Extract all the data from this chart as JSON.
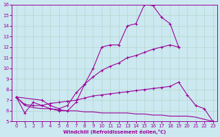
{
  "background_color": "#cce8f0",
  "grid_color": "#b0d8cc",
  "line_color": "#990099",
  "xlabel": "Windchill (Refroidissement éolien,°C)",
  "xlim": [
    -0.5,
    23.5
  ],
  "ylim": [
    5,
    16
  ],
  "xticks": [
    0,
    1,
    2,
    3,
    4,
    5,
    6,
    7,
    8,
    9,
    10,
    11,
    12,
    13,
    14,
    15,
    16,
    17,
    18,
    19,
    20,
    21,
    22,
    23
  ],
  "yticks": [
    5,
    6,
    7,
    8,
    9,
    10,
    11,
    12,
    13,
    14,
    15,
    16
  ],
  "line1_x": [
    0,
    1,
    2,
    3,
    4,
    5,
    6,
    7,
    8,
    9,
    10,
    11,
    12,
    13,
    14,
    15,
    16,
    17,
    18,
    19
  ],
  "line1_y": [
    7.3,
    5.8,
    6.8,
    6.5,
    6.2,
    6.0,
    6.0,
    6.8,
    8.5,
    10.0,
    12.0,
    12.2,
    12.2,
    14.0,
    14.2,
    16.0,
    15.9,
    14.8,
    14.2,
    12.0
  ],
  "line2_x": [
    0,
    3,
    4,
    5,
    6,
    7,
    8,
    9,
    10,
    11,
    12,
    13,
    14,
    15,
    16,
    17,
    18,
    19
  ],
  "line2_y": [
    7.3,
    7.0,
    6.5,
    6.2,
    6.5,
    7.7,
    8.5,
    9.2,
    9.8,
    10.2,
    10.5,
    11.0,
    11.2,
    11.5,
    11.8,
    12.0,
    12.2,
    12.0
  ],
  "line3_x": [
    0,
    1,
    2,
    3,
    4,
    5,
    6,
    7,
    8,
    9,
    10,
    11,
    12,
    13,
    14,
    15,
    16,
    17,
    18,
    19,
    20,
    21,
    22,
    23
  ],
  "line3_y": [
    7.3,
    6.6,
    6.5,
    6.5,
    6.7,
    6.8,
    6.9,
    7.0,
    7.2,
    7.4,
    7.5,
    7.6,
    7.7,
    7.8,
    7.9,
    8.0,
    8.1,
    8.2,
    8.3,
    8.7,
    7.5,
    6.5,
    6.2,
    5.0
  ],
  "line4_x": [
    0,
    1,
    2,
    3,
    4,
    5,
    6,
    7,
    8,
    9,
    10,
    11,
    12,
    13,
    14,
    15,
    16,
    17,
    18,
    19,
    20,
    21,
    22,
    23
  ],
  "line4_y": [
    7.3,
    6.5,
    6.3,
    6.2,
    6.2,
    6.1,
    6.0,
    6.0,
    5.9,
    5.9,
    5.8,
    5.8,
    5.8,
    5.8,
    5.7,
    5.7,
    5.6,
    5.6,
    5.5,
    5.5,
    5.5,
    5.4,
    5.2,
    5.0
  ]
}
